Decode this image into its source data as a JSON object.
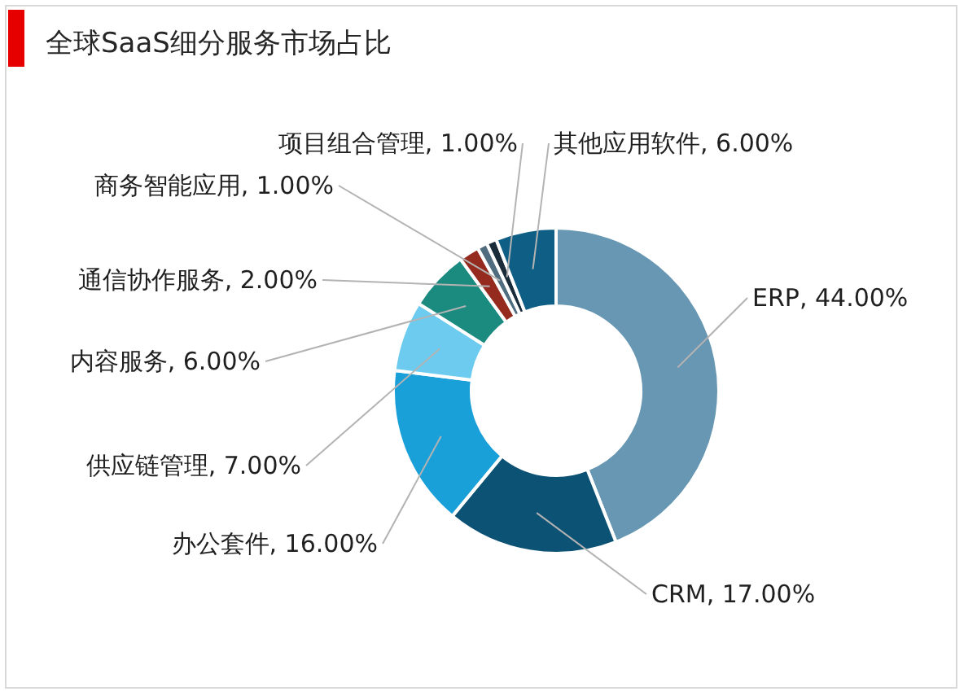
{
  "chart_data": {
    "type": "donut",
    "title": "全球SaaS细分服务市场占比",
    "categories": [
      "ERP",
      "CRM",
      "办公套件",
      "供应链管理",
      "内容服务",
      "通信协作服务",
      "商务智能应用",
      "项目组合管理",
      "其他应用软件"
    ],
    "values": [
      44,
      17,
      16,
      7,
      6,
      2,
      1,
      1,
      6
    ],
    "value_labels": [
      "44.00%",
      "17.00%",
      "16.00%",
      "7.00%",
      "6.00%",
      "2.00%",
      "1.00%",
      "1.00%",
      "6.00%"
    ],
    "colors": [
      "#6797b2",
      "#0c5274",
      "#1aa0d9",
      "#6ccbef",
      "#1b8a7f",
      "#952b1e",
      "#4f6d7f",
      "#1a2b3a",
      "#0f5e85"
    ]
  }
}
